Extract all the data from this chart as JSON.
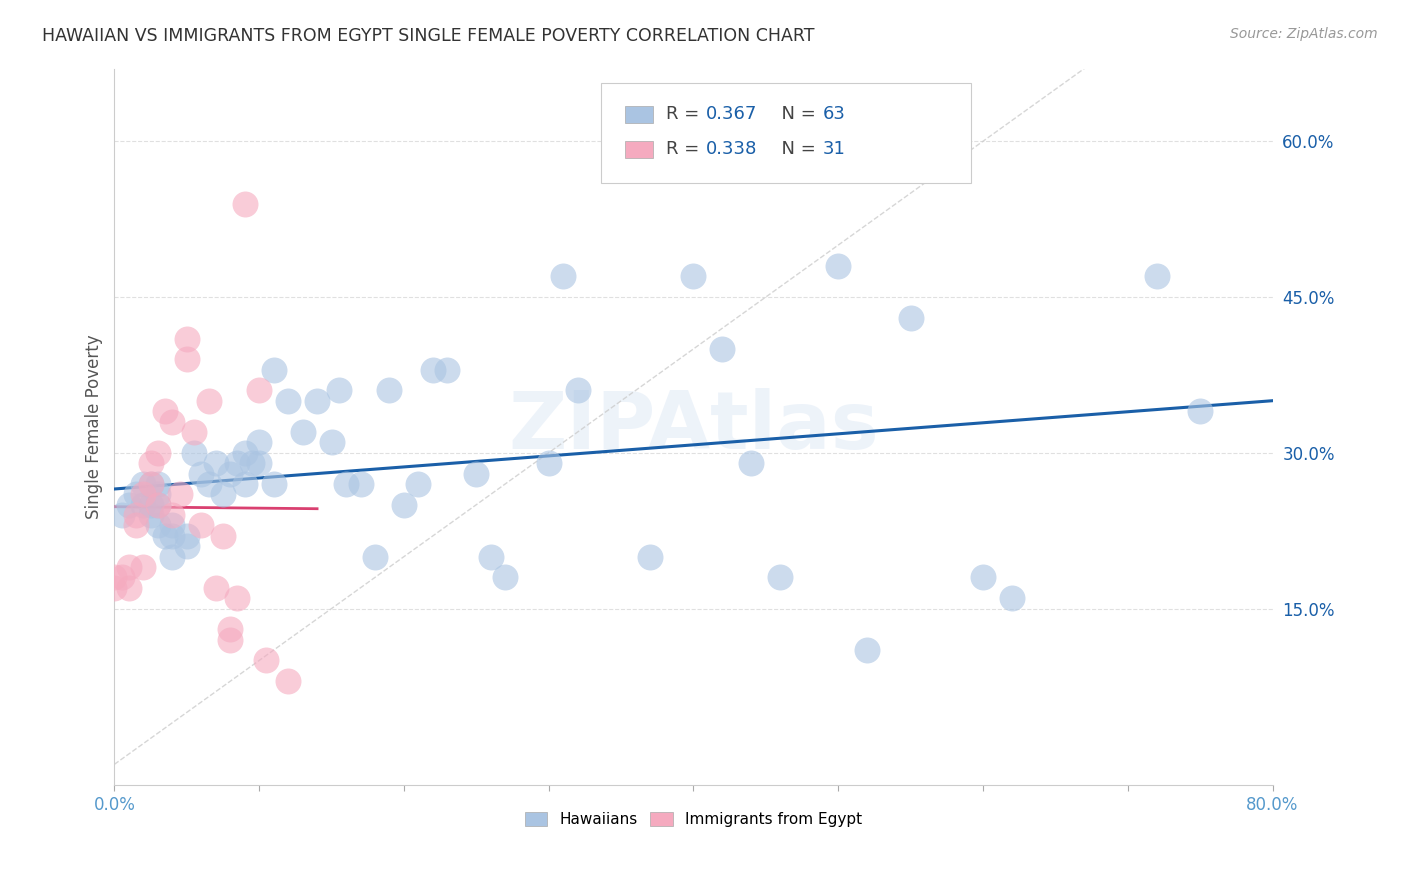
{
  "title": "HAWAIIAN VS IMMIGRANTS FROM EGYPT SINGLE FEMALE POVERTY CORRELATION CHART",
  "source": "Source: ZipAtlas.com",
  "ylabel": "Single Female Poverty",
  "ytick_labels": [
    "15.0%",
    "30.0%",
    "45.0%",
    "60.0%"
  ],
  "ytick_values": [
    0.15,
    0.3,
    0.45,
    0.6
  ],
  "xlim": [
    0.0,
    0.8
  ],
  "ylim": [
    -0.02,
    0.67
  ],
  "hawaiians_R": 0.367,
  "hawaiians_N": 63,
  "egypt_R": 0.338,
  "egypt_N": 31,
  "hawaiians_color": "#aac4e2",
  "egypt_color": "#f5aabf",
  "trendline_hawaiians_color": "#1a5fa8",
  "trendline_egypt_color": "#d94070",
  "diagonal_color": "#cccccc",
  "background_color": "#ffffff",
  "grid_color": "#dddddd",
  "legend_label_hawaiians": "Hawaiians",
  "legend_label_egypt": "Immigrants from Egypt",
  "hawaiians_x": [
    0.005,
    0.01,
    0.015,
    0.02,
    0.02,
    0.025,
    0.025,
    0.025,
    0.03,
    0.03,
    0.03,
    0.03,
    0.035,
    0.04,
    0.04,
    0.04,
    0.05,
    0.05,
    0.055,
    0.06,
    0.065,
    0.07,
    0.075,
    0.08,
    0.085,
    0.09,
    0.09,
    0.095,
    0.1,
    0.1,
    0.11,
    0.11,
    0.12,
    0.13,
    0.14,
    0.15,
    0.155,
    0.16,
    0.17,
    0.18,
    0.19,
    0.2,
    0.21,
    0.22,
    0.23,
    0.25,
    0.26,
    0.27,
    0.3,
    0.31,
    0.32,
    0.37,
    0.4,
    0.42,
    0.44,
    0.46,
    0.5,
    0.52,
    0.55,
    0.6,
    0.62,
    0.72,
    0.75
  ],
  "hawaiians_y": [
    0.24,
    0.25,
    0.26,
    0.25,
    0.27,
    0.24,
    0.25,
    0.27,
    0.23,
    0.25,
    0.26,
    0.27,
    0.22,
    0.2,
    0.23,
    0.22,
    0.21,
    0.22,
    0.3,
    0.28,
    0.27,
    0.29,
    0.26,
    0.28,
    0.29,
    0.27,
    0.3,
    0.29,
    0.29,
    0.31,
    0.38,
    0.27,
    0.35,
    0.32,
    0.35,
    0.31,
    0.36,
    0.27,
    0.27,
    0.2,
    0.36,
    0.25,
    0.27,
    0.38,
    0.38,
    0.28,
    0.2,
    0.18,
    0.29,
    0.47,
    0.36,
    0.2,
    0.47,
    0.4,
    0.29,
    0.18,
    0.48,
    0.11,
    0.43,
    0.18,
    0.16,
    0.47,
    0.34
  ],
  "egypt_x": [
    0.0,
    0.0,
    0.005,
    0.01,
    0.01,
    0.015,
    0.015,
    0.02,
    0.02,
    0.025,
    0.025,
    0.03,
    0.03,
    0.035,
    0.04,
    0.04,
    0.045,
    0.05,
    0.05,
    0.055,
    0.06,
    0.065,
    0.07,
    0.075,
    0.08,
    0.08,
    0.085,
    0.09,
    0.1,
    0.105,
    0.12
  ],
  "egypt_y": [
    0.17,
    0.18,
    0.18,
    0.17,
    0.19,
    0.23,
    0.24,
    0.19,
    0.26,
    0.27,
    0.29,
    0.25,
    0.3,
    0.34,
    0.24,
    0.33,
    0.26,
    0.39,
    0.41,
    0.32,
    0.23,
    0.35,
    0.17,
    0.22,
    0.12,
    0.13,
    0.16,
    0.54,
    0.36,
    0.1,
    0.08
  ]
}
